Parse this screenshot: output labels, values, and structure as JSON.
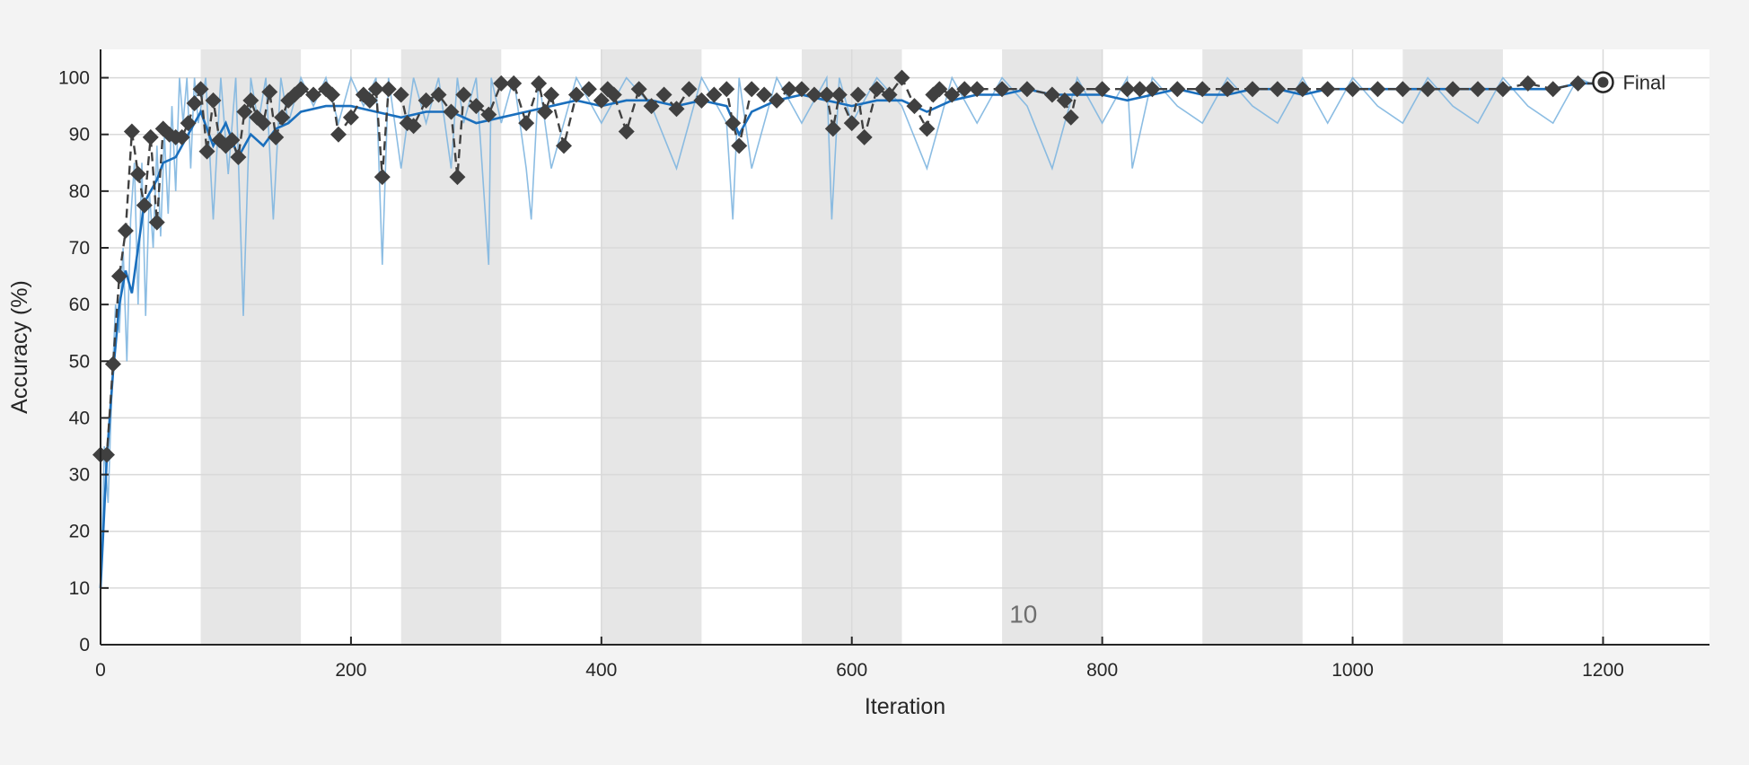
{
  "chart_data": {
    "type": "line",
    "xlabel": "Iteration",
    "ylabel": "Accuracy (%)",
    "xlim": [
      0,
      1285
    ],
    "ylim": [
      0,
      105
    ],
    "x_ticks": [
      0,
      200,
      400,
      600,
      800,
      1000,
      1200
    ],
    "y_ticks": [
      0,
      10,
      20,
      30,
      40,
      50,
      60,
      70,
      80,
      90,
      100
    ],
    "grid": true,
    "epoch_bands": [
      [
        80,
        160
      ],
      [
        240,
        320
      ],
      [
        400,
        480
      ],
      [
        560,
        640
      ],
      [
        720,
        800
      ],
      [
        880,
        960
      ],
      [
        1040,
        1120
      ]
    ],
    "epoch_annotation": {
      "text": "10",
      "x": 737,
      "y": 5.5
    },
    "final_point": {
      "x": 1200,
      "y": 99.2,
      "label": "Final"
    },
    "colors": {
      "raw": "#7fb6e0",
      "smoothed": "#1a6fbd",
      "validation": "#404040",
      "band": "#e6e6e6",
      "grid": "#d9d9d9"
    },
    "series": [
      {
        "kind": "raw",
        "x": [
          0,
          3,
          6,
          9,
          12,
          15,
          18,
          21,
          24,
          27,
          30,
          33,
          36,
          39,
          42,
          45,
          48,
          51,
          54,
          57,
          60,
          63,
          66,
          69,
          72,
          75,
          78,
          84,
          90,
          96,
          102,
          108,
          114,
          120,
          126,
          132,
          138,
          144,
          150,
          160,
          170,
          180,
          190,
          200,
          210,
          220,
          225,
          230,
          240,
          250,
          260,
          270,
          280,
          285,
          290,
          300,
          310,
          312,
          320,
          330,
          340,
          344,
          350,
          360,
          380,
          400,
          420,
          440,
          460,
          480,
          500,
          505,
          510,
          520,
          540,
          560,
          580,
          584,
          590,
          600,
          620,
          640,
          660,
          680,
          700,
          720,
          740,
          760,
          780,
          800,
          820,
          824,
          840,
          860,
          880,
          900,
          920,
          940,
          960,
          980,
          1000,
          1020,
          1040,
          1060,
          1080,
          1100,
          1120,
          1140,
          1160,
          1180,
          1200
        ],
        "y": [
          8,
          35,
          25,
          45,
          60,
          55,
          70,
          50,
          75,
          85,
          60,
          85,
          58,
          80,
          70,
          88,
          72,
          90,
          76,
          95,
          80,
          100,
          92,
          100,
          84,
          100,
          92,
          100,
          75,
          100,
          83,
          100,
          58,
          100,
          92,
          100,
          75,
          100,
          92,
          100,
          95,
          100,
          92,
          100,
          95,
          100,
          67,
          100,
          84,
          100,
          92,
          100,
          84,
          100,
          92,
          100,
          67,
          100,
          92,
          100,
          84,
          75,
          100,
          84,
          100,
          92,
          100,
          95,
          84,
          100,
          92,
          75,
          100,
          84,
          100,
          92,
          100,
          75,
          100,
          92,
          100,
          95,
          84,
          100,
          92,
          100,
          95,
          84,
          100,
          92,
          100,
          84,
          100,
          95,
          92,
          100,
          95,
          92,
          100,
          92,
          100,
          95,
          92,
          100,
          95,
          92,
          100,
          95,
          92,
          100,
          98
        ]
      },
      {
        "kind": "smoothed",
        "x": [
          0,
          5,
          10,
          15,
          20,
          25,
          30,
          35,
          40,
          45,
          50,
          60,
          70,
          80,
          90,
          100,
          110,
          120,
          130,
          140,
          150,
          160,
          180,
          200,
          220,
          240,
          260,
          280,
          300,
          320,
          340,
          360,
          380,
          400,
          420,
          440,
          460,
          480,
          500,
          510,
          520,
          540,
          560,
          580,
          600,
          620,
          640,
          660,
          680,
          700,
          720,
          740,
          760,
          780,
          800,
          820,
          840,
          860,
          880,
          900,
          920,
          940,
          960,
          980,
          1000,
          1020,
          1040,
          1060,
          1080,
          1100,
          1120,
          1140,
          1160,
          1180,
          1200
        ],
        "y": [
          10,
          33,
          48,
          60,
          66,
          62,
          70,
          78,
          80,
          82,
          85,
          86,
          90,
          94,
          88,
          92,
          86,
          90,
          88,
          91,
          92,
          94,
          95,
          95,
          94,
          93,
          94,
          94,
          92,
          93,
          94,
          95,
          96,
          95,
          96,
          96,
          95,
          96,
          95,
          90,
          94,
          96,
          97,
          96,
          95,
          96,
          96,
          94,
          96,
          97,
          97,
          98,
          97,
          97,
          97,
          96,
          97,
          98,
          97,
          97,
          98,
          98,
          97,
          98,
          98,
          98,
          98,
          98,
          98,
          98,
          98,
          98,
          98,
          99,
          99
        ]
      },
      {
        "kind": "validation",
        "x": [
          0,
          5,
          10,
          15,
          20,
          25,
          30,
          35,
          40,
          45,
          50,
          55,
          60,
          65,
          70,
          75,
          80,
          85,
          90,
          95,
          100,
          105,
          110,
          115,
          120,
          125,
          130,
          135,
          140,
          145,
          150,
          155,
          160,
          170,
          180,
          185,
          190,
          200,
          210,
          215,
          220,
          225,
          230,
          240,
          245,
          250,
          260,
          270,
          280,
          285,
          290,
          300,
          310,
          320,
          330,
          340,
          350,
          355,
          360,
          370,
          380,
          390,
          400,
          405,
          410,
          420,
          430,
          440,
          450,
          460,
          470,
          480,
          490,
          500,
          505,
          510,
          520,
          530,
          540,
          550,
          560,
          570,
          580,
          585,
          590,
          600,
          605,
          610,
          620,
          630,
          640,
          650,
          660,
          665,
          670,
          680,
          690,
          700,
          720,
          740,
          760,
          770,
          775,
          780,
          800,
          820,
          830,
          840,
          860,
          880,
          900,
          920,
          940,
          960,
          980,
          1000,
          1020,
          1040,
          1060,
          1080,
          1100,
          1120,
          1140,
          1160,
          1180,
          1200
        ],
        "y": [
          33.5,
          33.5,
          49.5,
          65,
          73,
          90.5,
          83,
          77.5,
          89.5,
          74.5,
          91,
          90,
          89.5,
          89.5,
          92,
          95.5,
          98,
          87,
          96,
          89,
          88,
          89,
          86,
          94,
          96,
          93,
          92,
          97.5,
          89.5,
          93,
          96,
          97,
          98,
          97,
          98,
          97,
          90,
          93,
          97,
          96,
          98,
          82.5,
          98,
          97,
          92,
          91.5,
          96,
          97,
          94,
          82.5,
          97,
          95,
          93.5,
          99,
          99,
          92,
          99,
          94,
          97,
          88,
          97,
          98,
          96,
          98,
          97,
          90.5,
          98,
          95,
          97,
          94.5,
          98,
          96,
          97,
          98,
          92,
          88,
          98,
          97,
          96,
          98,
          98,
          97,
          97,
          91,
          97,
          92,
          97,
          89.5,
          98,
          97,
          100,
          95,
          91,
          97,
          98,
          97,
          98,
          98,
          98,
          98,
          97,
          96,
          93,
          98,
          98,
          98,
          98,
          98,
          98,
          98,
          98,
          98,
          98,
          98,
          98,
          98,
          98,
          98,
          98,
          98,
          98,
          98,
          99,
          98,
          99,
          99
        ]
      }
    ]
  }
}
